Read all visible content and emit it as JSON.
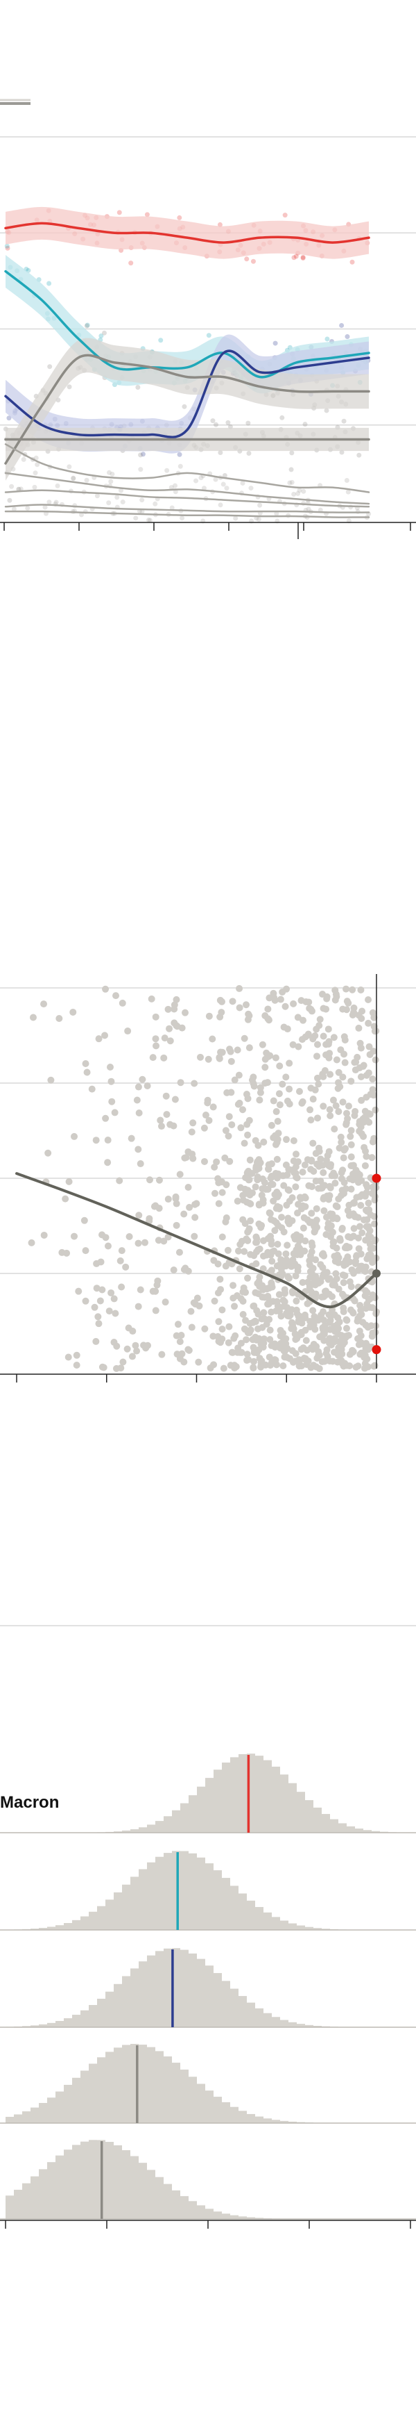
{
  "colors": {
    "background": "#ffffff",
    "grid": "#d9d9d9",
    "axis": "#222222",
    "dot_grey": "#cfccc7",
    "fit_dark": "#62625a",
    "marker_red": "#e3120b",
    "red": "#e3342f",
    "cyan": "#1fa7b8",
    "navy": "#2d3d8f",
    "grey": "#8c8a84",
    "grey_light": "#a8a6a0",
    "hist": "#d6d3cd",
    "band_red": "#f6c9c7",
    "band_cyan": "#bfe6ec",
    "band_navy": "#c8cdea",
    "band_grey": "#d8d6d1",
    "legend_swatch": "#9b9a95"
  },
  "chart_data": [
    {
      "type": "line",
      "x": [
        0,
        1,
        2,
        3,
        4,
        5,
        6,
        7,
        8,
        9,
        10
      ],
      "ylim": [
        0,
        40
      ],
      "xlim": [
        0,
        10
      ],
      "grid_y": [
        10,
        20,
        30,
        40
      ],
      "xticks": [
        0,
        2,
        4,
        6,
        8,
        10
      ],
      "legend": {
        "placement": "top-left"
      },
      "series": [
        {
          "color": "red",
          "values": [
            30.5,
            31,
            30.5,
            30,
            30,
            29.5,
            29,
            29.5,
            29.5,
            29,
            29.5
          ],
          "band": 1.7
        },
        {
          "color": "cyan",
          "values": [
            26,
            23,
            19,
            16,
            16,
            16,
            17.5,
            15,
            16.5,
            17,
            17.5
          ],
          "band": 1.7
        },
        {
          "color": "navy",
          "values": [
            13,
            10,
            9,
            9,
            9,
            9.5,
            17.5,
            15.5,
            16,
            16.5,
            17
          ],
          "band": 1.7
        },
        {
          "color": "grey",
          "values": [
            6,
            12,
            17,
            16.5,
            16,
            15,
            15,
            14,
            13.5,
            13.5,
            13.5
          ],
          "band": 1.8
        },
        {
          "color": "grey",
          "values": [
            8.5,
            8.5,
            8.5,
            8.5,
            8.5,
            8.5,
            8.5,
            8.5,
            8.5,
            8.5,
            8.5
          ],
          "band": 1.2
        },
        {
          "color": "grey_light",
          "values": [
            8,
            6,
            5,
            4.5,
            4.5,
            5,
            4.5,
            4,
            3.5,
            3.5,
            3
          ]
        },
        {
          "color": "grey_light",
          "values": [
            5,
            4.5,
            4,
            3.5,
            3.2,
            3.3,
            3,
            2.6,
            2.3,
            2.0,
            1.8
          ]
        },
        {
          "color": "grey_light",
          "values": [
            3,
            3.2,
            3,
            2.8,
            2.5,
            2.4,
            2.2,
            2.0,
            1.8,
            1.6,
            1.5
          ]
        },
        {
          "color": "grey_light",
          "values": [
            1.5,
            1.7,
            1.5,
            1.3,
            1.2,
            1.1,
            1.0,
            1.0,
            1.0,
            0.9,
            0.9
          ]
        },
        {
          "color": "grey_light",
          "values": [
            1.0,
            1.0,
            0.9,
            0.8,
            0.7,
            0.6,
            0.6,
            0.5,
            0.5,
            0.4,
            0.4
          ]
        }
      ]
    },
    {
      "type": "scatter",
      "xlim": [
        0,
        4
      ],
      "ylim": [
        0,
        4
      ],
      "grid_y": [
        1,
        2,
        3,
        4
      ],
      "xticks": [
        0,
        1,
        2,
        3,
        4
      ],
      "fit": {
        "x": [
          0,
          0.5,
          1,
          1.5,
          2,
          2.5,
          3,
          3.5,
          4
        ],
        "y": [
          2.05,
          1.88,
          1.7,
          1.5,
          1.3,
          1.1,
          0.9,
          0.65,
          1.0
        ]
      },
      "highlights": [
        {
          "x": 4,
          "y": 2.0,
          "color": "marker_red"
        },
        {
          "x": 4,
          "y": 0.2,
          "color": "marker_red"
        }
      ],
      "endpoint": {
        "x": 4,
        "y": 1.0
      }
    },
    {
      "type": "histogram",
      "label": "Macron",
      "xticks": [
        0,
        1,
        2,
        3,
        4
      ],
      "rows": [
        {
          "color": "red",
          "mean": 2.4,
          "center": 2.4,
          "spread": 0.45
        },
        {
          "color": "cyan",
          "mean": 1.7,
          "center": 1.72,
          "spread": 0.5
        },
        {
          "color": "navy",
          "mean": 1.65,
          "center": 1.66,
          "spread": 0.5
        },
        {
          "color": "grey",
          "mean": 1.3,
          "center": 1.28,
          "spread": 0.55
        },
        {
          "color": "grey",
          "mean": 0.95,
          "center": 0.9,
          "spread": 0.55
        }
      ]
    }
  ]
}
